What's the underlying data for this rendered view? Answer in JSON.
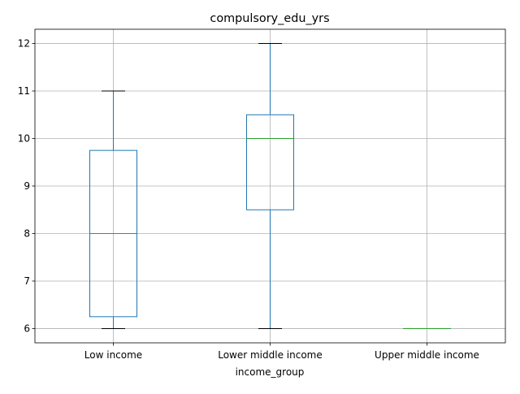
{
  "chart_data": {
    "type": "box",
    "title": "compulsory_edu_yrs",
    "xlabel": "income_group",
    "ylabel": "",
    "categories": [
      "Low income",
      "Lower middle income",
      "Upper middle income"
    ],
    "boxes": [
      {
        "category": "Low income",
        "whisker_low": 6,
        "q1": 6.25,
        "median": 8,
        "q3": 9.75,
        "whisker_high": 11
      },
      {
        "category": "Lower middle income",
        "whisker_low": 6,
        "q1": 8.5,
        "median": 10,
        "q3": 10.5,
        "whisker_high": 12
      },
      {
        "category": "Upper middle income",
        "whisker_low": 6,
        "q1": 6,
        "median": 6,
        "q3": 6,
        "whisker_high": 6
      }
    ],
    "yticks": [
      6,
      7,
      8,
      9,
      10,
      11,
      12
    ],
    "ytick_labels": [
      "6",
      "7",
      "8",
      "9",
      "10",
      "11",
      "12"
    ],
    "ylim": [
      5.7,
      12.3
    ],
    "grid": true,
    "colors": {
      "box": "#1f77b4",
      "median": "#2ca02c",
      "whisker": "#1f77b4",
      "cap": "#000000",
      "grid": "#b0b0b0"
    }
  }
}
